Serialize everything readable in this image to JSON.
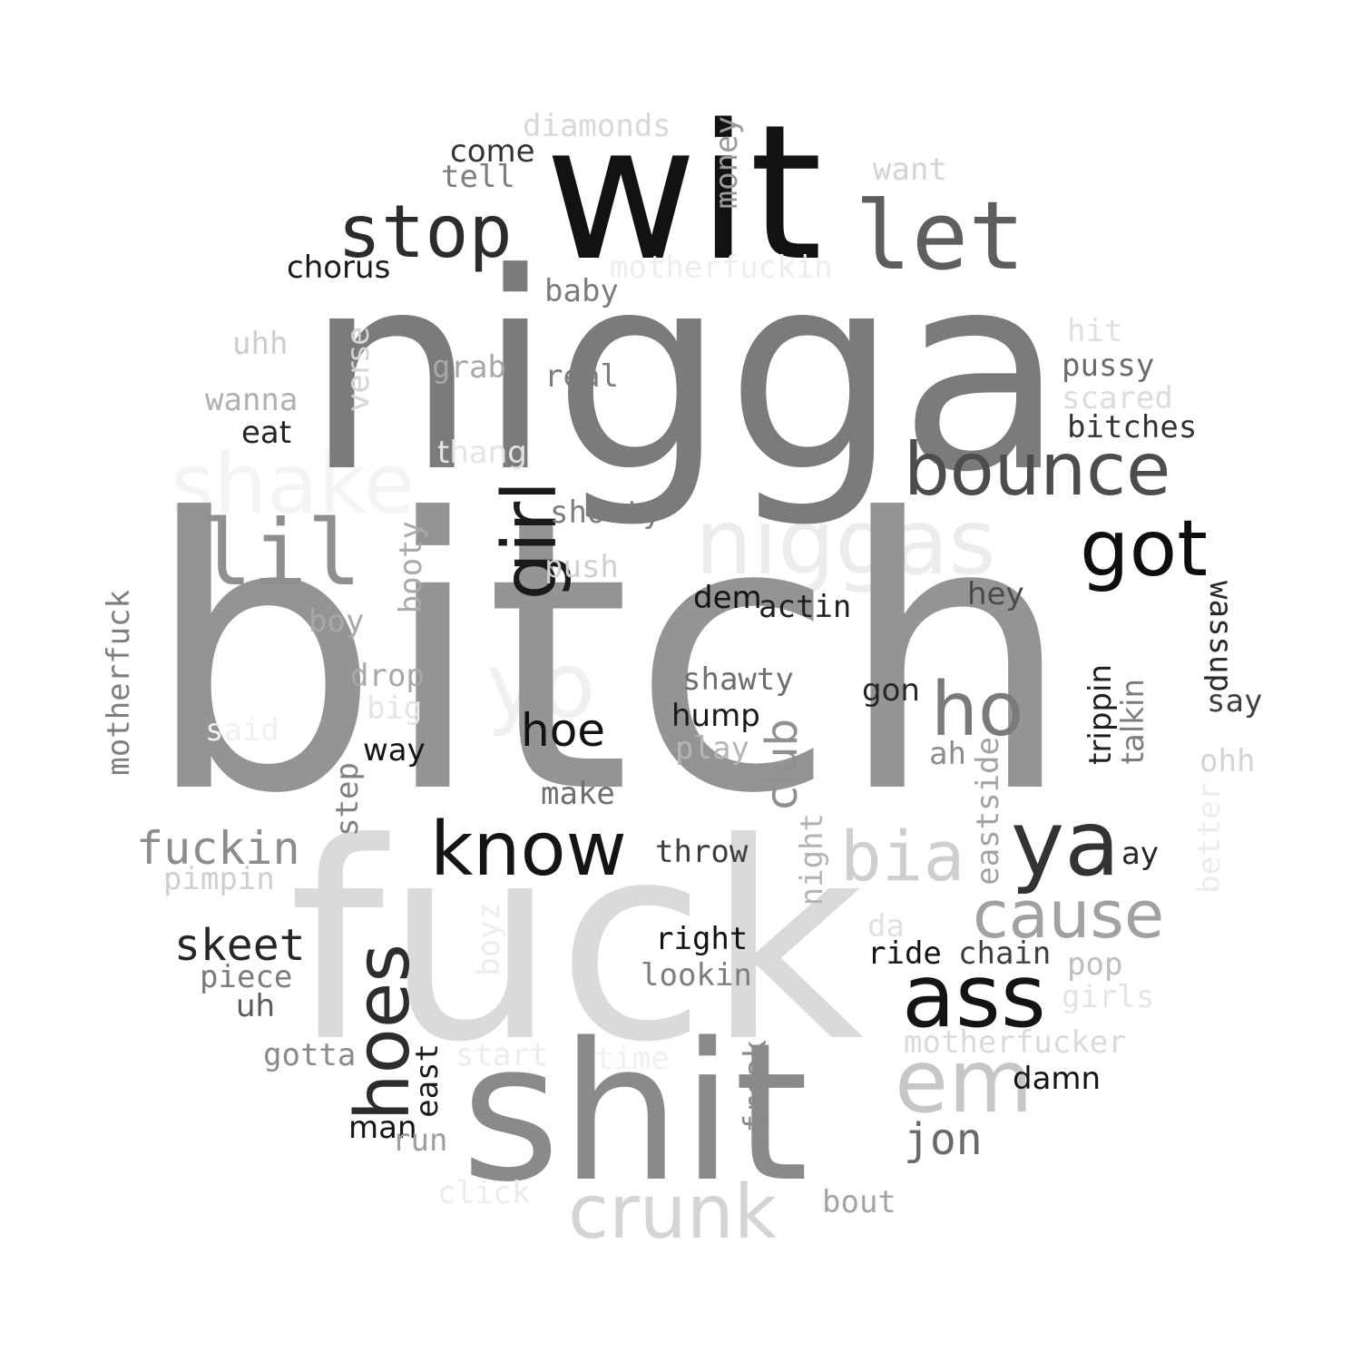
{
  "words": {
    "bitch": {
      "text": "bitch",
      "color": "#949494"
    },
    "nigga": {
      "text": "nigga",
      "color": "#7b7b7b"
    },
    "fuck": {
      "text": "fuck",
      "color": "#dadada"
    },
    "shit": {
      "text": "shit",
      "color": "#8a8a8a"
    },
    "wit": {
      "text": "wit",
      "color": "#121212"
    },
    "let": {
      "text": "let",
      "color": "#5e5e5e"
    },
    "stop": {
      "text": "stop",
      "color": "#2c2c2c"
    },
    "bounce": {
      "text": "bounce",
      "color": "#4d4d4d"
    },
    "niggas": {
      "text": "niggas",
      "color": "#ececec"
    },
    "shake": {
      "text": "shake",
      "color": "#f4f4f4"
    },
    "lil": {
      "text": "lil",
      "color": "#8f8f8f"
    },
    "girl": {
      "text": "girl",
      "color": "#1a1a1a"
    },
    "got": {
      "text": "got",
      "color": "#0e0e0e"
    },
    "yo": {
      "text": "yo",
      "color": "#f0f0f0"
    },
    "ho": {
      "text": "ho",
      "color": "#7a7a7a"
    },
    "hoe": {
      "text": "hoe",
      "color": "#121212"
    },
    "know": {
      "text": "know",
      "color": "#141414"
    },
    "bia": {
      "text": "bia",
      "color": "#cfcfcf"
    },
    "ya": {
      "text": "ya",
      "color": "#333333"
    },
    "cause": {
      "text": "cause",
      "color": "#a1a1a1"
    },
    "ass": {
      "text": "ass",
      "color": "#141414"
    },
    "em": {
      "text": "em",
      "color": "#c6c6c6"
    },
    "hoes": {
      "text": "hoes",
      "color": "#2d2d2d"
    },
    "crunk": {
      "text": "crunk",
      "color": "#d4d4d4"
    },
    "jon": {
      "text": "jon",
      "color": "#6a6a6a"
    },
    "fuckin": {
      "text": "fuckin",
      "color": "#8c8c8c"
    },
    "skeet": {
      "text": "skeet",
      "color": "#262626"
    },
    "club": {
      "text": "club",
      "color": "#8f8f8f"
    },
    "diamonds": {
      "text": "diamonds",
      "color": "#d8d8d8"
    },
    "come": {
      "text": "come",
      "color": "#333333"
    },
    "tell": {
      "text": "tell",
      "color": "#7d7d7d"
    },
    "money": {
      "text": "money",
      "color": "#9a9a9a"
    },
    "want": {
      "text": "want",
      "color": "#d4d4d4"
    },
    "chorus": {
      "text": "chorus",
      "color": "#1a1a1a"
    },
    "motherfuckin": {
      "text": "motherfuckin",
      "color": "#ededed"
    },
    "baby": {
      "text": "baby",
      "color": "#7c7c7c"
    },
    "uhh": {
      "text": "uhh",
      "color": "#cccccc"
    },
    "verse": {
      "text": "verse",
      "color": "#d4d4d4"
    },
    "grab": {
      "text": "grab",
      "color": "#a8a8a8"
    },
    "real": {
      "text": "real",
      "color": "#7d7d7d"
    },
    "hit": {
      "text": "hit",
      "color": "#e0e0e0"
    },
    "pussy": {
      "text": "pussy",
      "color": "#6b6b6b"
    },
    "scared": {
      "text": "scared",
      "color": "#dcdcdc"
    },
    "bitches": {
      "text": "bitches",
      "color": "#333333"
    },
    "wanna": {
      "text": "wanna",
      "color": "#b0b0b0"
    },
    "eat": {
      "text": "eat",
      "color": "#242424"
    },
    "thang": {
      "text": "thang",
      "color": "#e4e4e4"
    },
    "shorty": {
      "text": "shorty",
      "color": "#7d7d7d"
    },
    "booty": {
      "text": "booty",
      "color": "#a9a9a9"
    },
    "push": {
      "text": "push",
      "color": "#d0d0d0"
    },
    "boy": {
      "text": "boy",
      "color": "#a8a8a8"
    },
    "dem": {
      "text": "dem",
      "color": "#141414"
    },
    "actin": {
      "text": "actin",
      "color": "#1f1f1f"
    },
    "hey": {
      "text": "hey",
      "color": "#4a4a4a"
    },
    "wassup": {
      "text": "wassup",
      "color": "#292929"
    },
    "motherfuck": {
      "text": "motherfuck",
      "color": "#7f7f7f"
    },
    "drop": {
      "text": "drop",
      "color": "#a8a8a8"
    },
    "big": {
      "text": "big",
      "color": "#e4e4e4"
    },
    "said": {
      "text": "said",
      "color": "#f0f0f0"
    },
    "shawty": {
      "text": "shawty",
      "color": "#6e6e6e"
    },
    "hump": {
      "text": "hump",
      "color": "#1a1a1a"
    },
    "play": {
      "text": "play",
      "color": "#b5b5b5"
    },
    "gon": {
      "text": "gon",
      "color": "#262626"
    },
    "trippin": {
      "text": "trippin",
      "color": "#1f1f1f"
    },
    "talkin": {
      "text": "talkin",
      "color": "#7c7c7c"
    },
    "say": {
      "text": "say",
      "color": "#3f3f3f"
    },
    "ohh": {
      "text": "ohh",
      "color": "#d4d4d4"
    },
    "way": {
      "text": "way",
      "color": "#141414"
    },
    "ah": {
      "text": "ah",
      "color": "#8c8c8c"
    },
    "step": {
      "text": "step",
      "color": "#808080"
    },
    "make": {
      "text": "make",
      "color": "#6e6e6e"
    },
    "eastside": {
      "text": "eastside",
      "color": "#a3a3a3"
    },
    "better": {
      "text": "better",
      "color": "#ececec"
    },
    "night": {
      "text": "night",
      "color": "#b3b3b3"
    },
    "throw": {
      "text": "throw",
      "color": "#3e3e3e"
    },
    "ay": {
      "text": "ay",
      "color": "#262626"
    },
    "pimpin": {
      "text": "pimpin",
      "color": "#cfcfcf"
    },
    "boyz": {
      "text": "boyz",
      "color": "#ededed"
    },
    "da": {
      "text": "da",
      "color": "#e0e0e0"
    },
    "right": {
      "text": "right",
      "color": "#121212"
    },
    "ride": {
      "text": "ride",
      "color": "#141414"
    },
    "chain": {
      "text": "chain",
      "color": "#3e3e3e"
    },
    "pop": {
      "text": "pop",
      "color": "#bdbdbd"
    },
    "piece": {
      "text": "piece",
      "color": "#7b7b7b"
    },
    "lookin": {
      "text": "lookin",
      "color": "#7d7d7d"
    },
    "girls": {
      "text": "girls",
      "color": "#e4e4e4"
    },
    "uh": {
      "text": "uh",
      "color": "#5a5a5a"
    },
    "motherfucker": {
      "text": "motherfucker",
      "color": "#dadada"
    },
    "gotta": {
      "text": "gotta",
      "color": "#8a8a8a"
    },
    "start": {
      "text": "start",
      "color": "#ececec"
    },
    "time": {
      "text": "time",
      "color": "#f0f0f0"
    },
    "freak": {
      "text": "freak",
      "color": "#8a8a8a"
    },
    "east": {
      "text": "east",
      "color": "#1a1a1a"
    },
    "damn": {
      "text": "damn",
      "color": "#141414"
    },
    "man": {
      "text": "man",
      "color": "#141414"
    },
    "run": {
      "text": "run",
      "color": "#9e9e9e"
    },
    "click": {
      "text": "click",
      "color": "#ececec"
    },
    "bout": {
      "text": "bout",
      "color": "#a3a3a3"
    }
  }
}
